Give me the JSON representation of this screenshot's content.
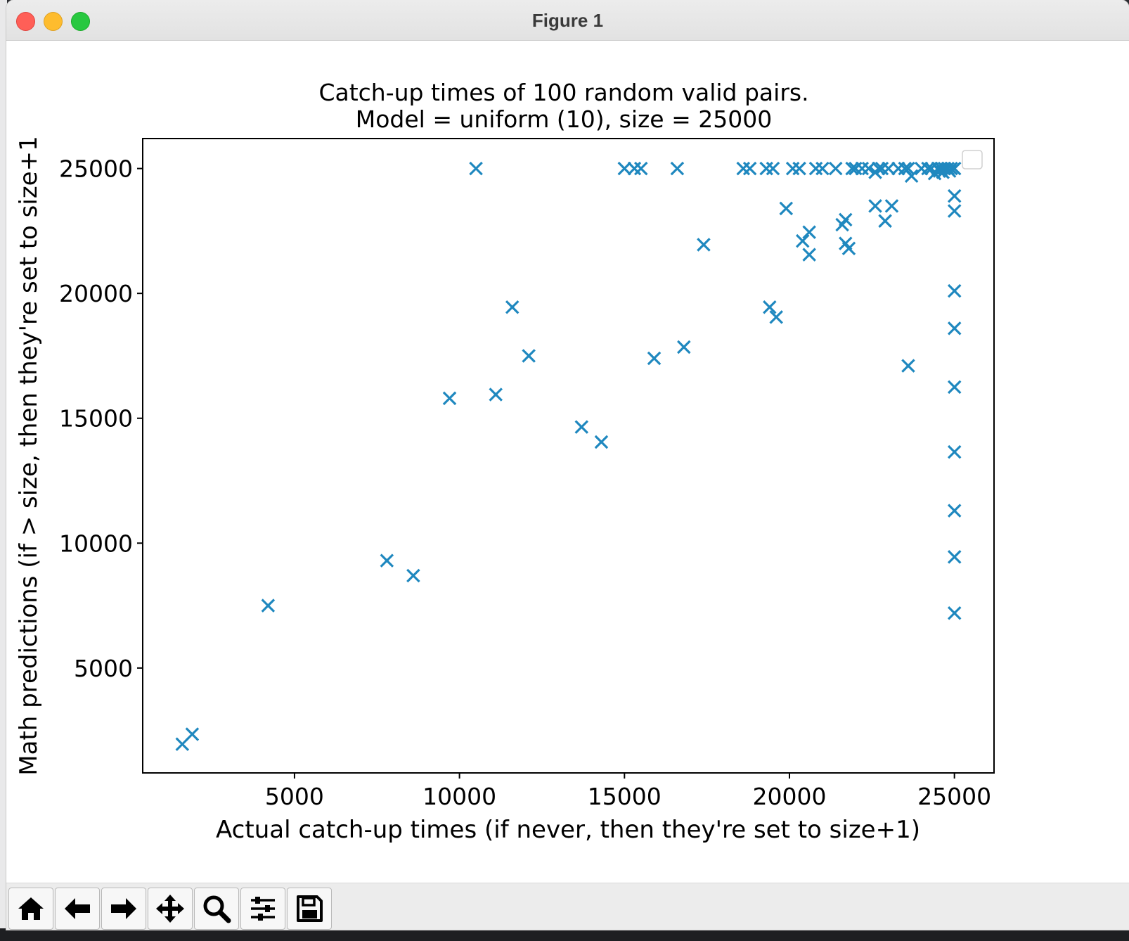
{
  "window": {
    "title": "Figure 1"
  },
  "toolbar": {
    "buttons": [
      {
        "name": "home-button",
        "icon": "home-icon"
      },
      {
        "name": "back-button",
        "icon": "arrow-left-icon"
      },
      {
        "name": "forward-button",
        "icon": "arrow-right-icon"
      },
      {
        "name": "pan-button",
        "icon": "move-icon"
      },
      {
        "name": "zoom-button",
        "icon": "magnifier-icon"
      },
      {
        "name": "configure-subplots-button",
        "icon": "sliders-icon"
      },
      {
        "name": "save-button",
        "icon": "floppy-disk-icon"
      }
    ]
  },
  "chart_data": {
    "type": "scatter",
    "title": "Catch-up times of 100 random valid pairs.",
    "subtitle": "Model = uniform (10), size = 25000",
    "xlabel": "Actual catch-up times (if never, then they're set to size+1)",
    "ylabel": "Math predictions (if > size, then they're set to size+1",
    "xlim": [
      400,
      26200
    ],
    "ylim": [
      800,
      26200
    ],
    "xticks": [
      5000,
      10000,
      15000,
      20000,
      25000
    ],
    "yticks": [
      5000,
      10000,
      15000,
      20000,
      25000
    ],
    "xtick_labels": [
      "5000",
      "10000",
      "15000",
      "20000",
      "25000"
    ],
    "ytick_labels": [
      "5000",
      "10000",
      "15000",
      "20000",
      "25000"
    ],
    "marker": "x",
    "color": "#1f88bf",
    "grid": false,
    "legend": "top-right (empty)",
    "points": [
      [
        1600,
        1950
      ],
      [
        1900,
        2350
      ],
      [
        4200,
        7500
      ],
      [
        7800,
        9300
      ],
      [
        8600,
        8700
      ],
      [
        9700,
        15800
      ],
      [
        10500,
        25000
      ],
      [
        11100,
        15950
      ],
      [
        11600,
        19450
      ],
      [
        12100,
        17500
      ],
      [
        13700,
        14650
      ],
      [
        14300,
        14050
      ],
      [
        15000,
        25000
      ],
      [
        15300,
        25000
      ],
      [
        15500,
        25000
      ],
      [
        15900,
        17400
      ],
      [
        16600,
        25000
      ],
      [
        16800,
        17850
      ],
      [
        17400,
        21950
      ],
      [
        18600,
        25000
      ],
      [
        18800,
        25000
      ],
      [
        19300,
        25000
      ],
      [
        19400,
        19450
      ],
      [
        19500,
        25000
      ],
      [
        19600,
        19050
      ],
      [
        19900,
        23400
      ],
      [
        20100,
        25000
      ],
      [
        20300,
        25000
      ],
      [
        20400,
        22100
      ],
      [
        20600,
        21550
      ],
      [
        20600,
        22450
      ],
      [
        20800,
        25000
      ],
      [
        21000,
        25000
      ],
      [
        21400,
        25000
      ],
      [
        21600,
        22750
      ],
      [
        21700,
        22950
      ],
      [
        21700,
        22000
      ],
      [
        21800,
        21800
      ],
      [
        21900,
        25000
      ],
      [
        22000,
        25000
      ],
      [
        22200,
        25000
      ],
      [
        22400,
        25000
      ],
      [
        22600,
        24850
      ],
      [
        22600,
        23500
      ],
      [
        22700,
        25000
      ],
      [
        22800,
        25000
      ],
      [
        22900,
        22900
      ],
      [
        23000,
        25000
      ],
      [
        23100,
        23500
      ],
      [
        23300,
        25000
      ],
      [
        23500,
        25000
      ],
      [
        23600,
        25000
      ],
      [
        23600,
        17100
      ],
      [
        23700,
        24700
      ],
      [
        24000,
        25000
      ],
      [
        24200,
        25000
      ],
      [
        24300,
        25000
      ],
      [
        24400,
        24800
      ],
      [
        24500,
        25000
      ],
      [
        24550,
        24900
      ],
      [
        24600,
        25000
      ],
      [
        24650,
        24850
      ],
      [
        24700,
        25000
      ],
      [
        24800,
        25000
      ],
      [
        24850,
        24900
      ],
      [
        24900,
        25000
      ],
      [
        25001,
        25000
      ],
      [
        25001,
        23900
      ],
      [
        25001,
        23300
      ],
      [
        25001,
        20100
      ],
      [
        25001,
        18600
      ],
      [
        25001,
        16250
      ],
      [
        25001,
        13650
      ],
      [
        25001,
        11300
      ],
      [
        25001,
        9450
      ],
      [
        25001,
        7200
      ]
    ]
  }
}
